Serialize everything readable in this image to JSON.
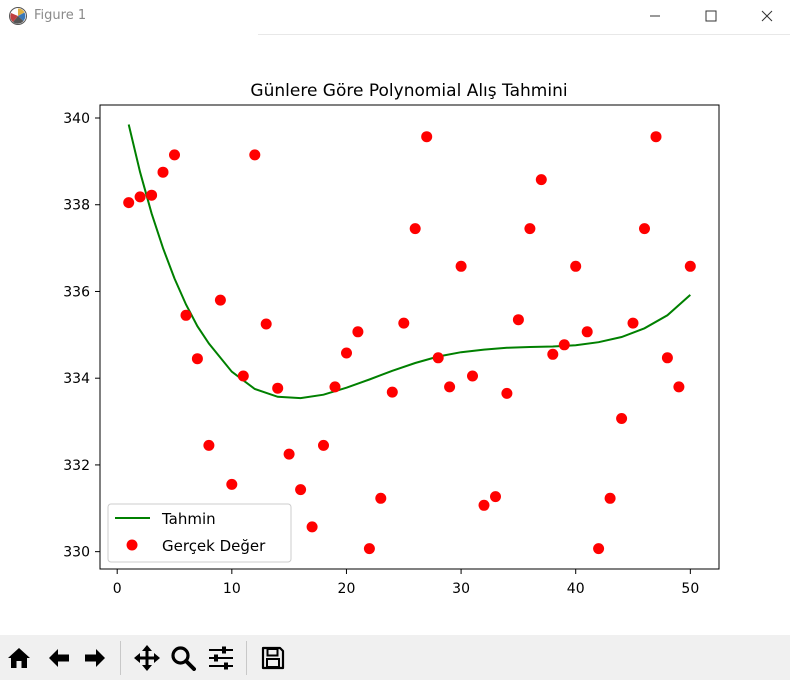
{
  "window": {
    "title": "Figure 1",
    "icons": {
      "app": "matplotlib-logo-icon",
      "minimize": "minimize-icon",
      "maximize": "maximize-icon",
      "close": "close-icon"
    }
  },
  "toolbar": {
    "buttons": [
      {
        "name": "home",
        "icon": "home-icon"
      },
      {
        "name": "back",
        "icon": "arrow-left-icon"
      },
      {
        "name": "forward",
        "icon": "arrow-right-icon"
      },
      {
        "name": "pan",
        "icon": "move-icon"
      },
      {
        "name": "zoom",
        "icon": "magnifier-icon"
      },
      {
        "name": "configure-subplots",
        "icon": "sliders-icon"
      },
      {
        "name": "save",
        "icon": "floppy-disk-icon"
      }
    ]
  },
  "chart_data": {
    "type": "scatter",
    "title": "Günlere Göre Polynomial Alış Tahmini",
    "xlabel": "",
    "ylabel": "",
    "xlim": [
      -1.5,
      52.5
    ],
    "ylim": [
      329.6,
      340.3
    ],
    "xticks": [
      0,
      10,
      20,
      30,
      40,
      50
    ],
    "yticks": [
      330,
      332,
      334,
      336,
      338,
      340
    ],
    "grid": false,
    "legend_position": "lower-left",
    "colors": {
      "line": "#008000",
      "points": "#ff0000"
    },
    "series": [
      {
        "name": "Tahmin",
        "kind": "line",
        "x": [
          1,
          2,
          3,
          4,
          5,
          6,
          7,
          8,
          10,
          12,
          14,
          16,
          18,
          20,
          22,
          24,
          26,
          28,
          30,
          32,
          34,
          36,
          38,
          40,
          42,
          44,
          46,
          48,
          50
        ],
        "y": [
          339.85,
          338.75,
          337.8,
          337.0,
          336.3,
          335.7,
          335.2,
          334.8,
          334.15,
          333.75,
          333.57,
          333.54,
          333.62,
          333.78,
          333.97,
          334.17,
          334.35,
          334.5,
          334.6,
          334.66,
          334.7,
          334.72,
          334.73,
          334.76,
          334.83,
          334.95,
          335.15,
          335.45,
          335.92
        ]
      },
      {
        "name": "Gerçek Değer",
        "kind": "scatter",
        "x": [
          1,
          2,
          3,
          4,
          5,
          6,
          7,
          8,
          9,
          10,
          11,
          12,
          13,
          14,
          15,
          16,
          17,
          18,
          19,
          20,
          21,
          22,
          23,
          24,
          25,
          26,
          27,
          28,
          29,
          30,
          31,
          32,
          33,
          34,
          35,
          36,
          37,
          38,
          39,
          40,
          41,
          42,
          43,
          44,
          45,
          46,
          47,
          48,
          49,
          50
        ],
        "y": [
          338.05,
          338.18,
          338.22,
          338.75,
          339.15,
          335.45,
          334.45,
          332.45,
          335.8,
          331.55,
          334.05,
          339.15,
          335.25,
          333.77,
          332.25,
          331.43,
          330.57,
          332.45,
          333.8,
          334.58,
          335.07,
          330.07,
          331.23,
          333.68,
          335.27,
          337.45,
          339.57,
          334.47,
          333.8,
          336.58,
          334.05,
          331.07,
          331.27,
          333.65,
          335.35,
          337.45,
          338.58,
          334.55,
          334.77,
          336.58,
          335.07,
          330.07,
          331.23,
          333.07,
          335.27,
          337.45,
          339.57,
          334.47,
          333.8,
          336.58
        ]
      }
    ]
  }
}
